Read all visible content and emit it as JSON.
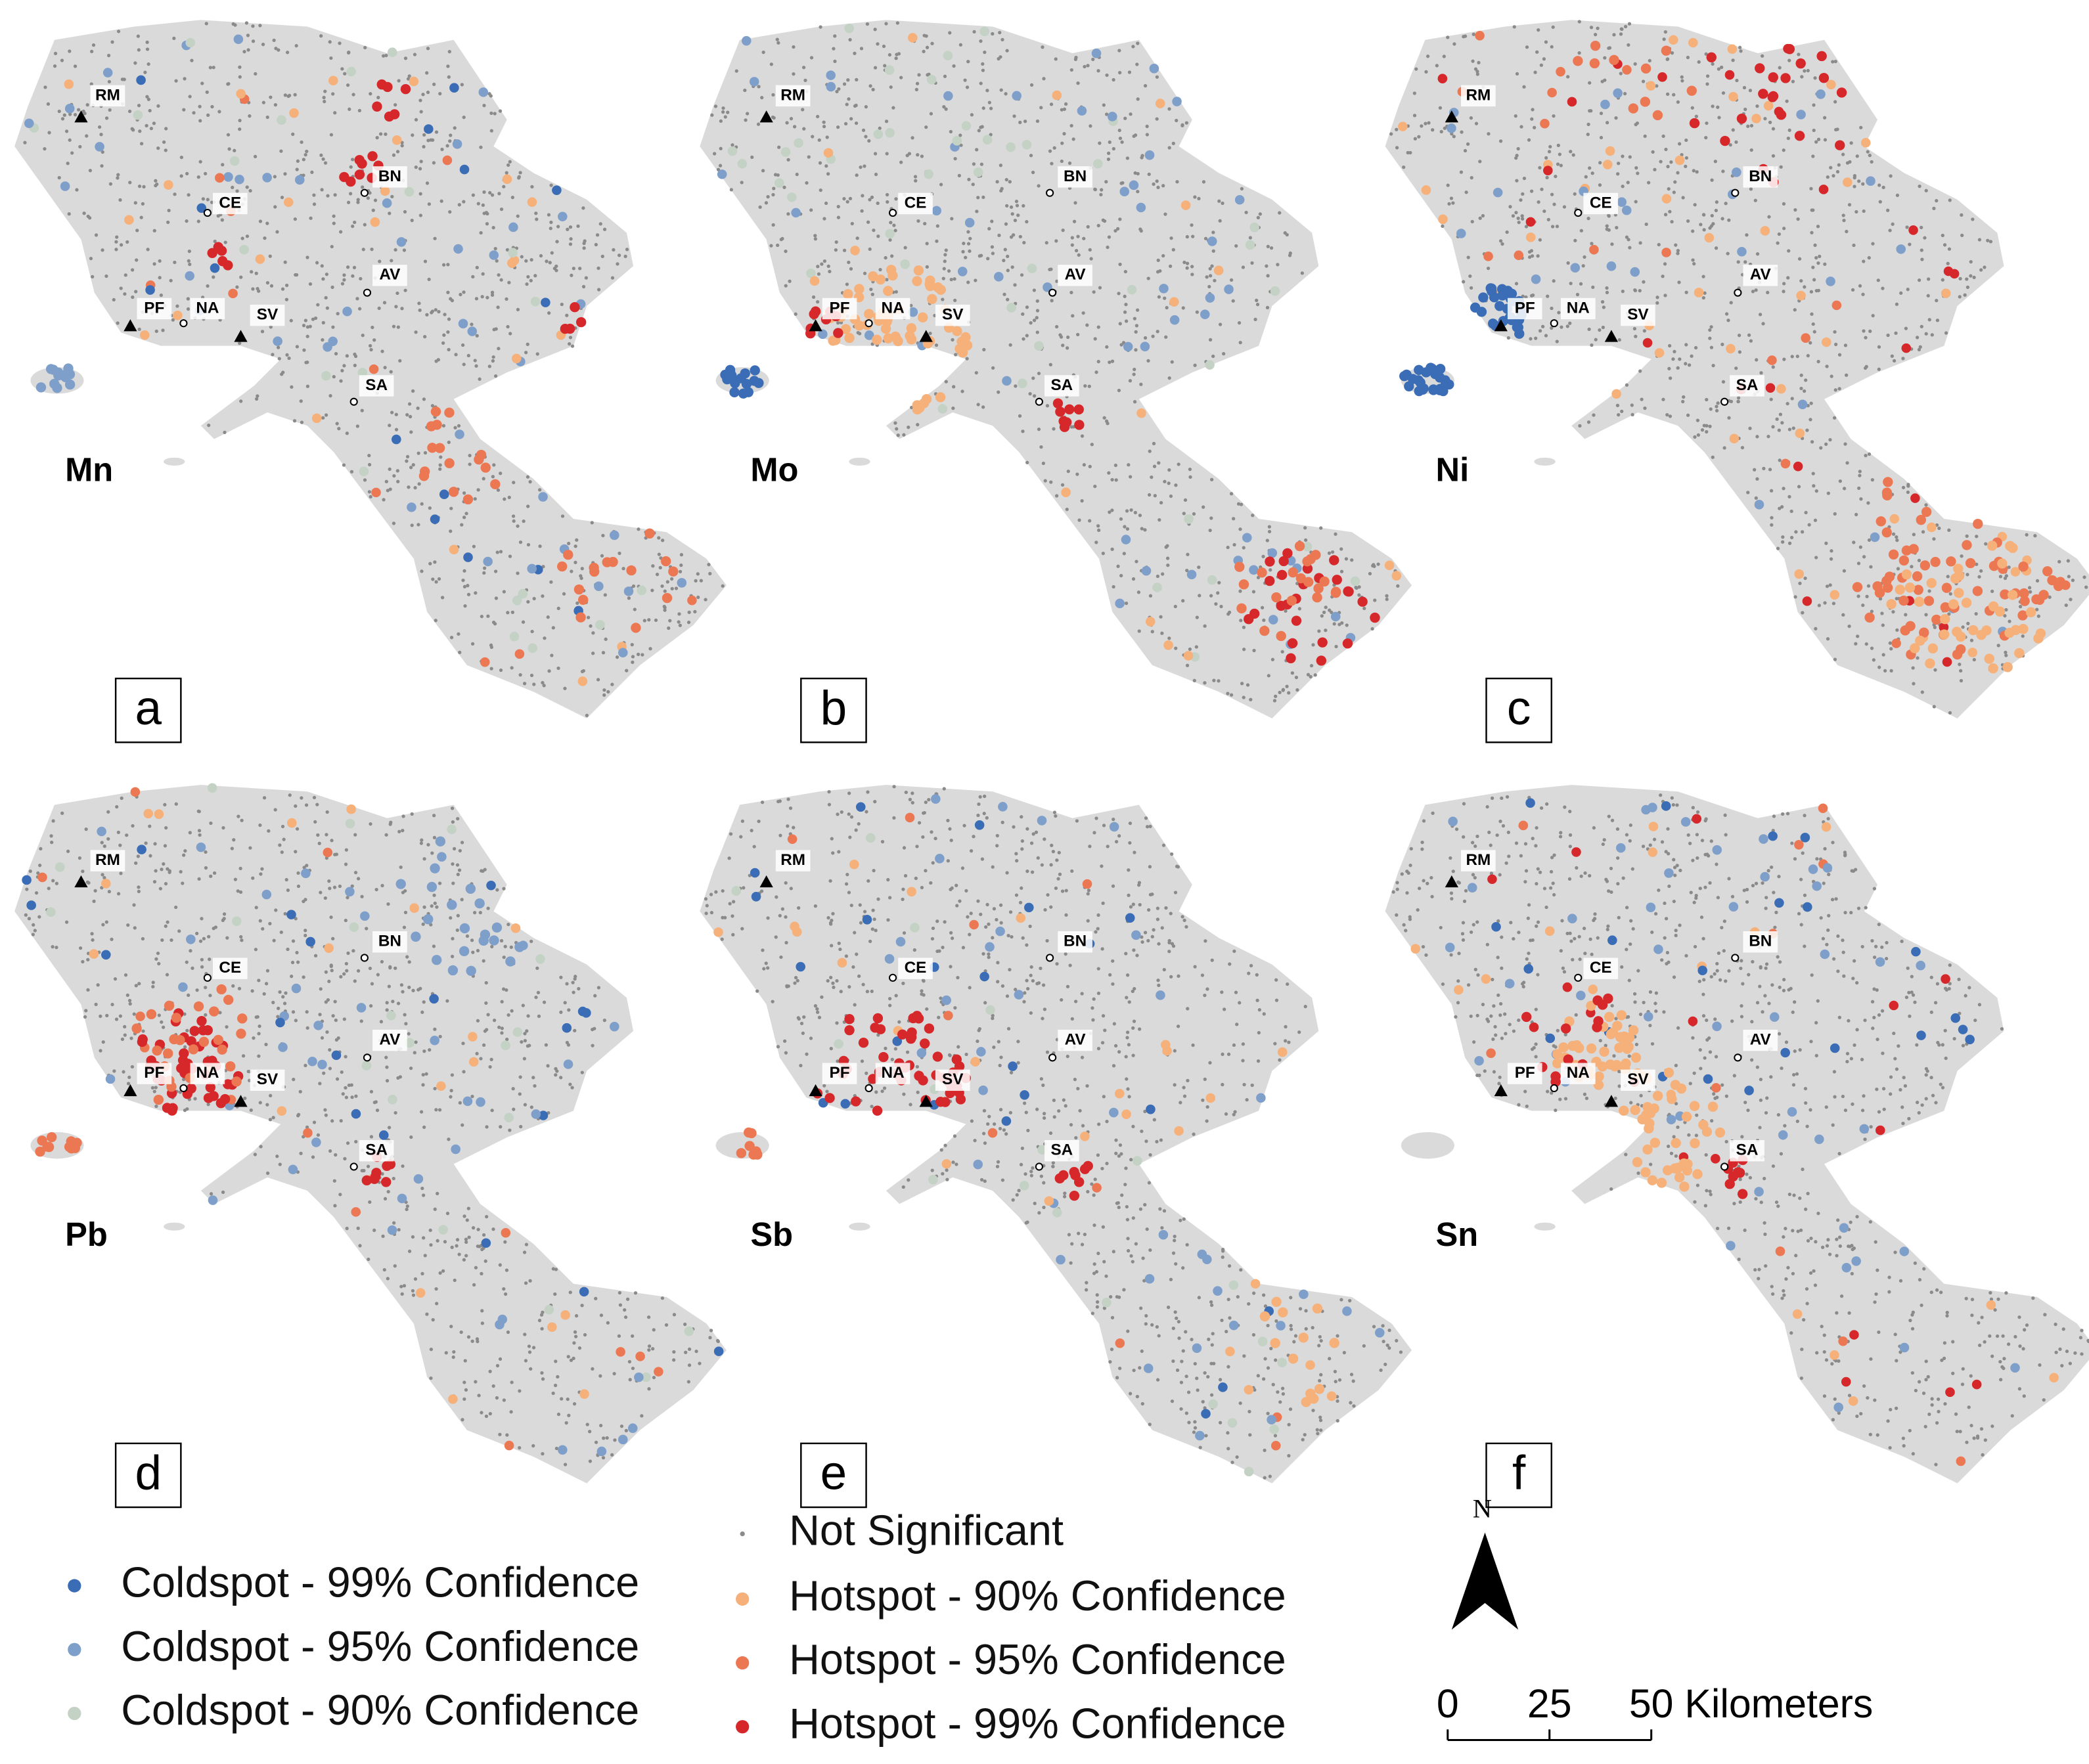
{
  "cities": [
    "RM",
    "CE",
    "BN",
    "AV",
    "PF",
    "NA",
    "SV",
    "SA"
  ],
  "panels": [
    {
      "element": "Mn",
      "label": "a"
    },
    {
      "element": "Mo",
      "label": "b"
    },
    {
      "element": "Ni",
      "label": "c"
    },
    {
      "element": "Pb",
      "label": "d"
    },
    {
      "element": "Sb",
      "label": "e"
    },
    {
      "element": "Sn",
      "label": "f"
    }
  ],
  "legend": [
    {
      "name": "Coldspot - 99% Confidence",
      "color": "#3a6db5"
    },
    {
      "name": "Coldspot - 95% Confidence",
      "color": "#7f9fcb"
    },
    {
      "name": "Coldspot - 90% Confidence",
      "color": "#c3d2c4"
    },
    {
      "name": "Not Significant",
      "color": "#8a8a8a"
    },
    {
      "name": "Hotspot - 90% Confidence",
      "color": "#f6b07a"
    },
    {
      "name": "Hotspot - 95% Confidence",
      "color": "#ec7753"
    },
    {
      "name": "Hotspot - 99% Confidence",
      "color": "#d6282a"
    }
  ],
  "north_label": "N",
  "scale_bar": {
    "ticks": [
      0,
      25,
      50
    ],
    "unit": "Kilometers"
  }
}
